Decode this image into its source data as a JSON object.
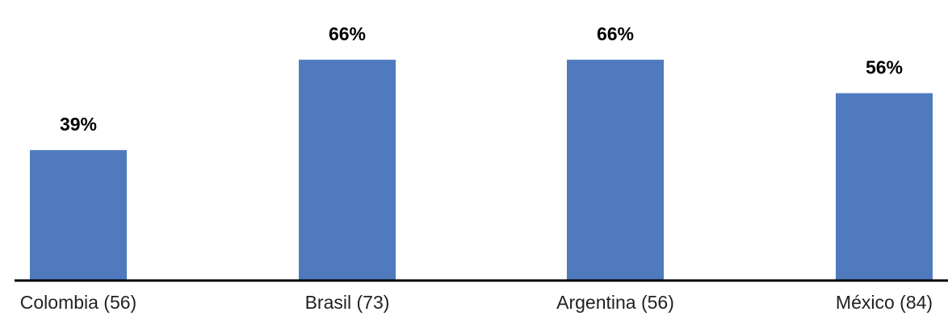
{
  "chart_data": {
    "type": "bar",
    "categories": [
      "Colombia (56)",
      "Brasil (73)",
      "Argentina (56)",
      "México (84)"
    ],
    "values": [
      39,
      66,
      66,
      56
    ],
    "value_labels": [
      "39%",
      "66%",
      "66%",
      "56%"
    ],
    "title": "",
    "xlabel": "",
    "ylabel": "",
    "ylim": [
      0,
      100
    ],
    "grid": false,
    "legend": "none",
    "bar_color": "#4F7BBE",
    "axis_color": "#000000"
  }
}
